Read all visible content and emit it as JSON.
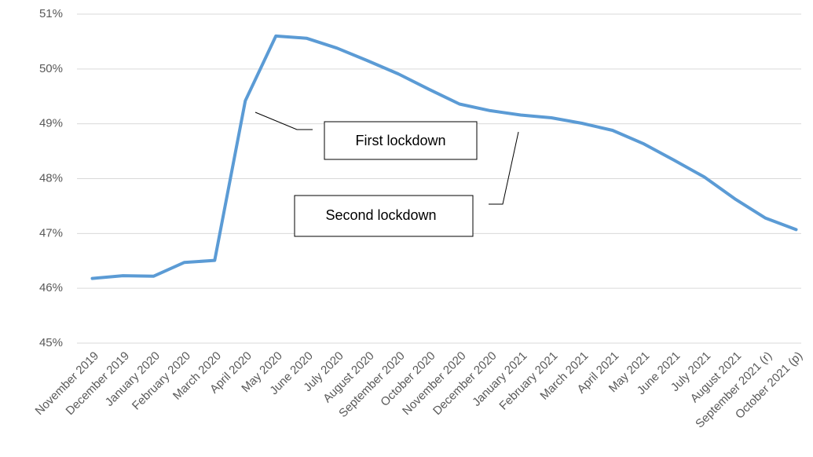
{
  "chart_data": {
    "type": "line",
    "categories": [
      "November 2019",
      "December 2019",
      "January 2020",
      "February 2020",
      "March 2020",
      "April 2020",
      "May 2020",
      "June 2020",
      "July 2020",
      "August 2020",
      "September 2020",
      "October 2020",
      "November 2020",
      "December 2020",
      "January 2021",
      "February 2021",
      "March 2021",
      "April 2021",
      "May 2021",
      "June 2021",
      "July 2021",
      "August 2021",
      "September 2021 (r)",
      "October 2021 (p)"
    ],
    "series": [
      {
        "color": "#5b9bd5",
        "values": [
          46.18,
          46.23,
          46.22,
          46.47,
          46.51,
          49.42,
          50.6,
          50.56,
          50.38,
          50.15,
          49.91,
          49.63,
          49.36,
          49.24,
          49.16,
          49.11,
          49.01,
          48.88,
          48.64,
          48.34,
          48.03,
          47.63,
          47.28,
          47.07
        ]
      }
    ],
    "ylim": [
      45,
      51
    ],
    "yticks": [
      {
        "value": 45,
        "label": "45%"
      },
      {
        "value": 46,
        "label": "46%"
      },
      {
        "value": 47,
        "label": "47%"
      },
      {
        "value": 48,
        "label": "48%"
      },
      {
        "value": 49,
        "label": "49%"
      },
      {
        "value": 50,
        "label": "50%"
      },
      {
        "value": 51,
        "label": "51%"
      }
    ],
    "grid": true,
    "annotations": [
      "First lockdown",
      "Second lockdown"
    ]
  }
}
